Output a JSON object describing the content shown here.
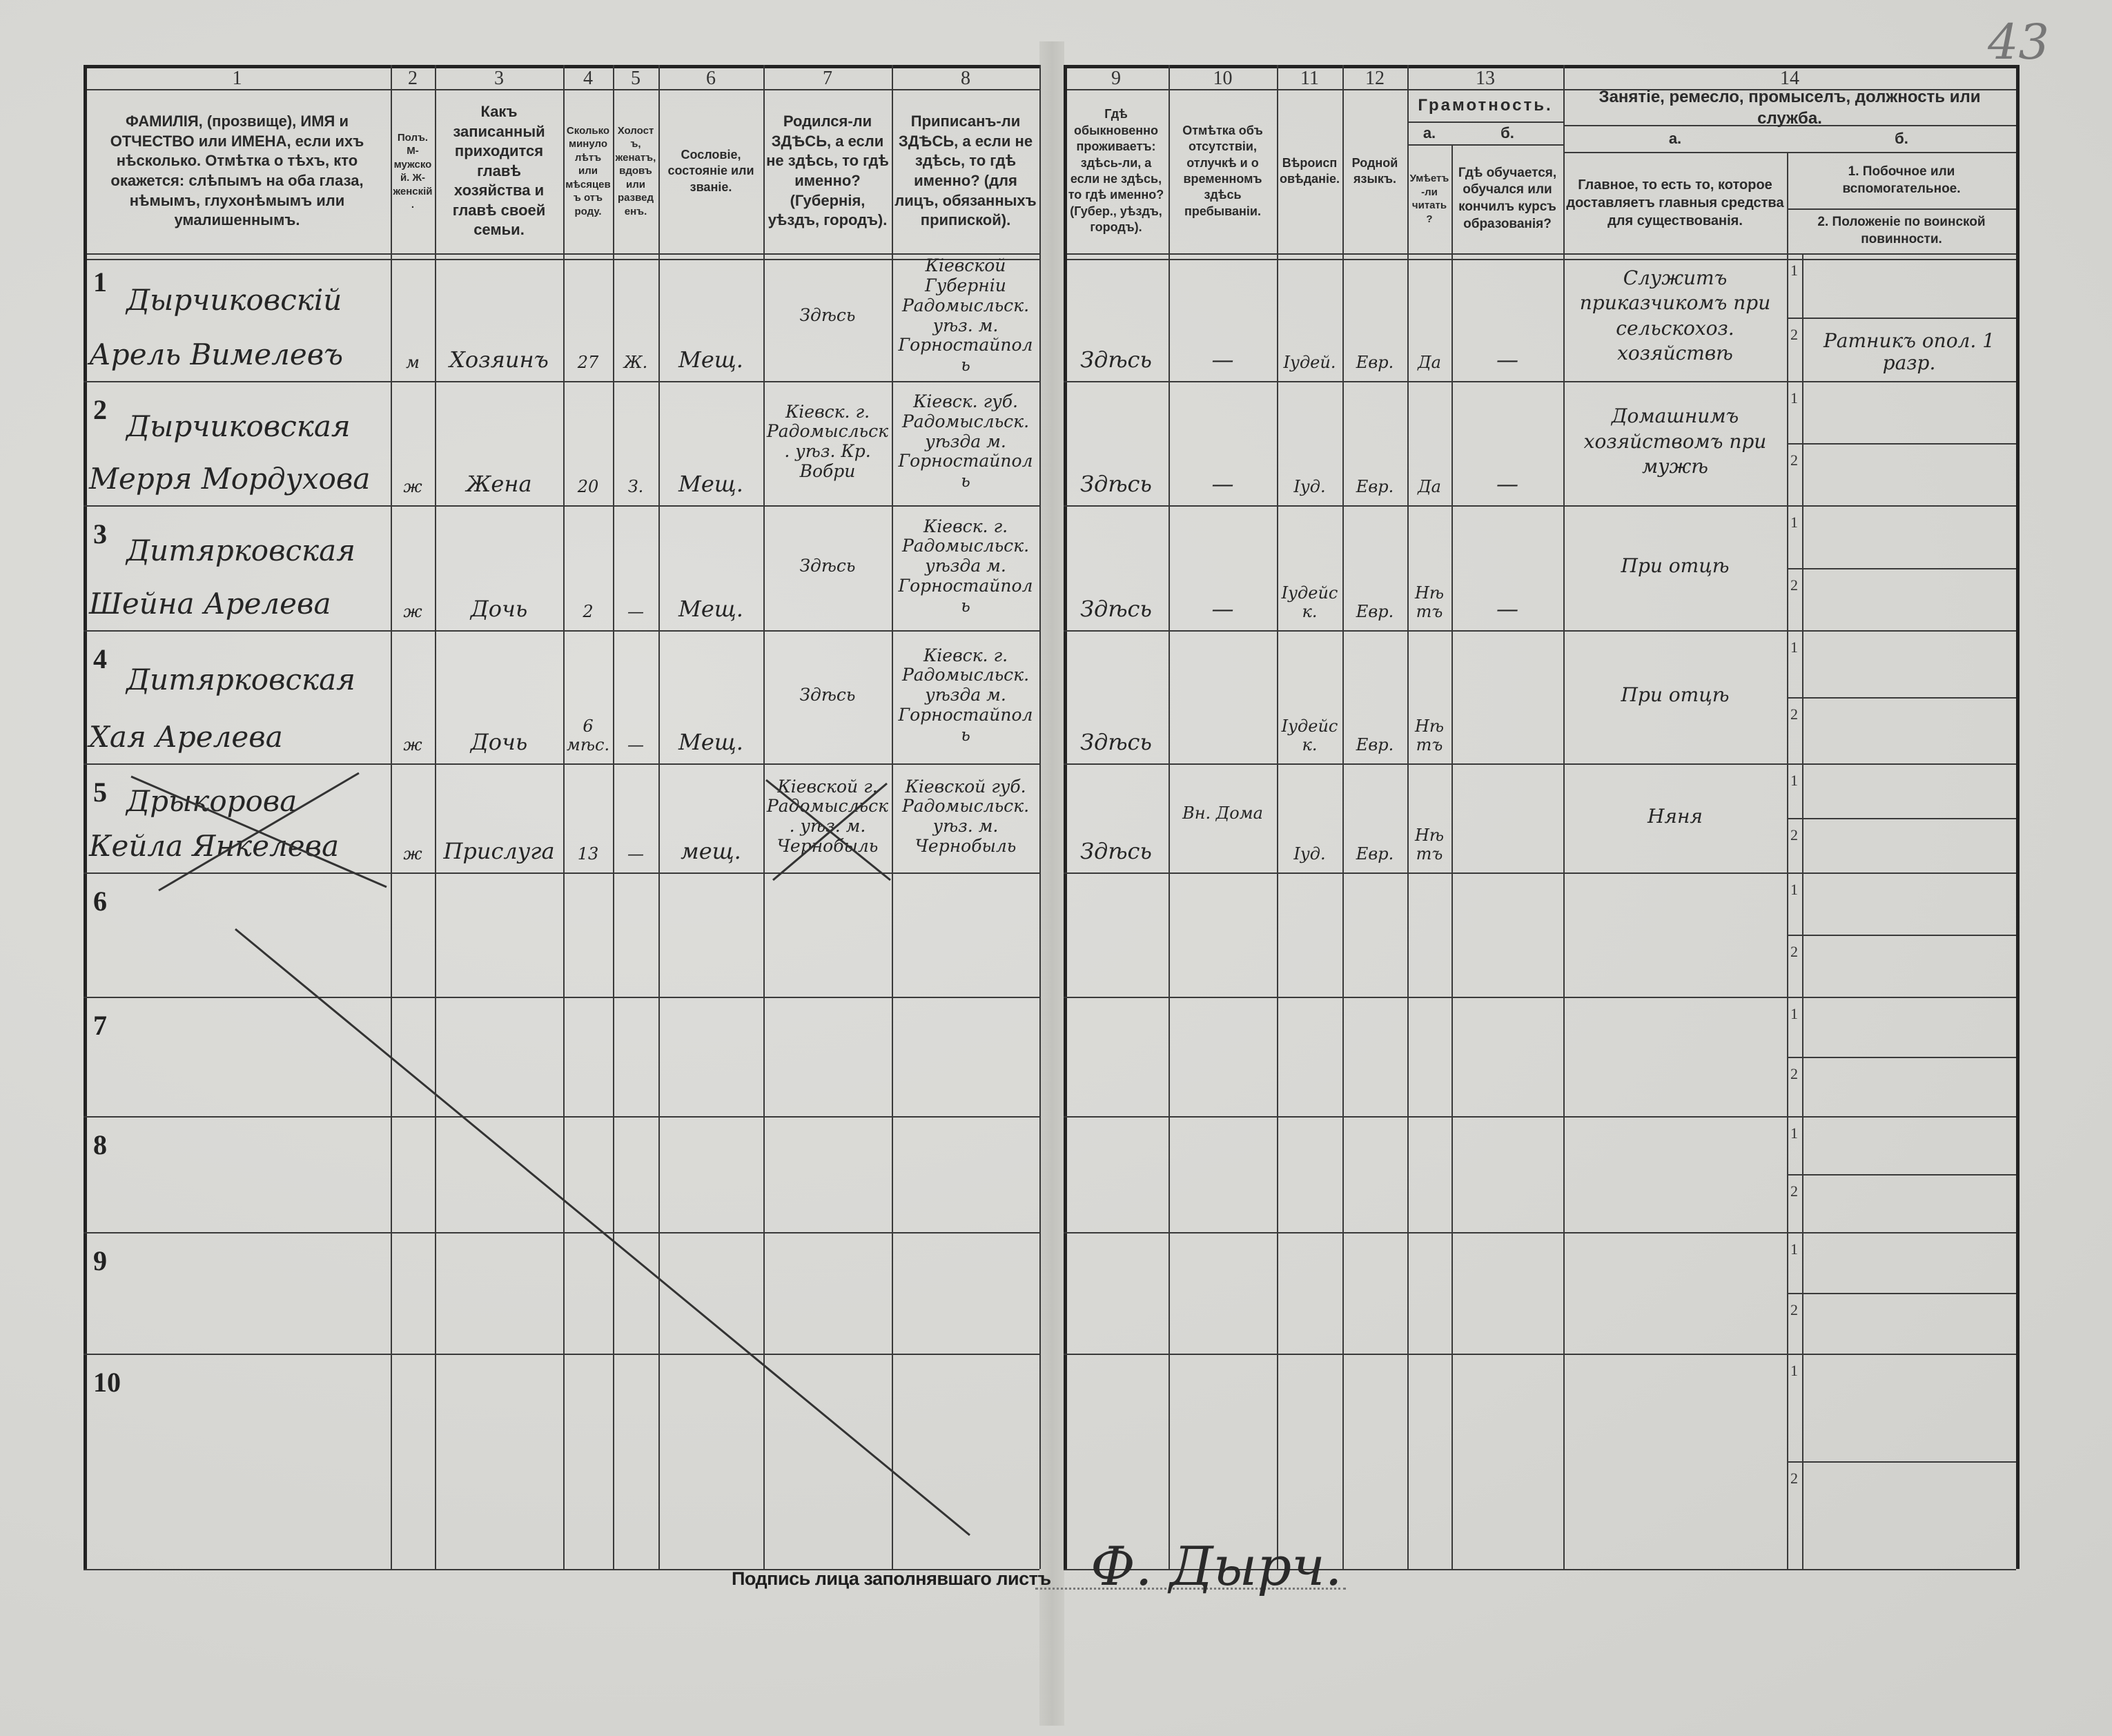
{
  "page_number": "43",
  "headers": {
    "c1": {
      "num": "1",
      "text": "ФАМИЛІЯ, (прозвище), ИМЯ и ОТЧЕСТВО или ИМЕНА, если ихъ нѣсколько. Отмѣтка о тѣхъ, кто окажется: слѣпымъ на оба глаза, нѣмымъ, глухонѣмымъ или умалишеннымъ."
    },
    "c2": {
      "num": "2",
      "text": "Полъ. М-мужской. Ж-женскій."
    },
    "c3": {
      "num": "3",
      "text": "Какъ записанный приходится главѣ хозяйства и главѣ своей семьи."
    },
    "c4": {
      "num": "4",
      "text": "Сколько минуло лѣтъ или мѣсяцевъ отъ роду."
    },
    "c5": {
      "num": "5",
      "text": "Холостъ, женатъ, вдовъ или разведенъ."
    },
    "c6": {
      "num": "6",
      "text": "Сословіе, состояніе или званіе."
    },
    "c7": {
      "num": "7",
      "text": "Родился-ли ЗДѢСЬ, а если не здѣсь, то гдѣ именно? (Губернія, уѣздъ, городъ)."
    },
    "c8": {
      "num": "8",
      "text": "Приписанъ-ли ЗДѢСЬ, а если не здѣсь, то гдѣ именно? (для лицъ, обязанныхъ припиской)."
    },
    "c9": {
      "num": "9",
      "text": "Гдѣ обыкновенно проживаетъ: здѣсь-ли, а если не здѣсь, то гдѣ именно? (Губер., уѣздъ, городъ)."
    },
    "c10": {
      "num": "10",
      "text": "Отмѣтка объ отсутствіи, отлучкѣ и о временномъ здѣсь пребываніи."
    },
    "c11": {
      "num": "11",
      "text": "Вѣроисповѣданіе."
    },
    "c12": {
      "num": "12",
      "text": "Родной языкъ."
    },
    "c13": {
      "num": "13",
      "text": "Грамотность.",
      "a_label": "а.",
      "a_text": "Умѣетъ-ли читать?",
      "b_label": "б.",
      "b_text": "Гдѣ обучается, обучался или кончилъ курсъ образованія?"
    },
    "c14": {
      "num": "14",
      "text": "Занятіе, ремесло, промыселъ, должность или служба.",
      "a_label": "а.",
      "a_text": "Главное, то есть то, которое доставляетъ главныя средства для существованія.",
      "b_label": "б.",
      "b_text1": "1. Побочное или вспомогательное.",
      "b_text2": "2. Положеніе по воинской повинности."
    }
  },
  "row_numbers": [
    "1",
    "2",
    "3",
    "4",
    "5",
    "6",
    "7",
    "8",
    "9",
    "10"
  ],
  "subrow_labels": [
    "1",
    "2"
  ],
  "rows": [
    {
      "surname": "Дырчиковскій",
      "name": "Арель Вимелевъ",
      "sex": "м",
      "relation": "Хозяинъ",
      "age": "27",
      "marital": "Ж.",
      "estate": "Мещ.",
      "birthplace": "Здѣсь",
      "registered": "Кіевской Губерніи Радомысльск. уѣз. м. Горностайполь",
      "residence": "Здѣсь",
      "absence": "—",
      "religion": "Іудей.",
      "language": "Евр.",
      "literate": "Да",
      "schooling": "—",
      "occupation_main": "Служитъ приказчикомъ при сельскохоз. хозяйствѣ",
      "occupation_secondary": "",
      "military": "Ратникъ опол. 1 разр.",
      "crossed": false
    },
    {
      "surname": "Дырчиковская",
      "name": "Мерря Мордухова",
      "sex": "ж",
      "relation": "Жена",
      "age": "20",
      "marital": "З.",
      "estate": "Мещ.",
      "birthplace": "Кіевск. г. Радомысльск. уѣз. Кр. Вобри",
      "registered": "Кіевск. губ. Радомысльск. уѣзда м. Горностайполь",
      "residence": "Здѣсь",
      "absence": "—",
      "religion": "Іуд.",
      "language": "Евр.",
      "literate": "Да",
      "schooling": "—",
      "occupation_main": "Домашнимъ хозяйствомъ при мужѣ",
      "occupation_secondary": "",
      "military": "",
      "crossed": false
    },
    {
      "surname": "Дитярковская",
      "name": "Шейна Арелева",
      "sex": "ж",
      "relation": "Дочь",
      "age": "2",
      "marital": "—",
      "estate": "Мещ.",
      "birthplace": "Здѣсь",
      "registered": "Кіевск. г. Радомысльск. уѣзда м. Горностайполь",
      "residence": "Здѣсь",
      "absence": "—",
      "religion": "Іудейск.",
      "language": "Евр.",
      "literate": "Нѣтъ",
      "schooling": "—",
      "occupation_main": "При отцѣ",
      "occupation_secondary": "",
      "military": "",
      "crossed": false
    },
    {
      "surname": "Дитярковская",
      "name": "Хая Арелева",
      "sex": "ж",
      "relation": "Дочь",
      "age": "6 мѣс.",
      "marital": "—",
      "estate": "Мещ.",
      "birthplace": "Здѣсь",
      "registered": "Кіевск. г. Радомысльск. уѣзда м. Горностайполь",
      "residence": "Здѣсь",
      "absence": "",
      "religion": "Іудейск.",
      "language": "Евр.",
      "literate": "Нѣтъ",
      "schooling": "",
      "occupation_main": "При отцѣ",
      "occupation_secondary": "",
      "military": "",
      "crossed": false
    },
    {
      "surname": "Дрыкорова",
      "name": "Кейла Янкелева",
      "sex": "ж",
      "relation": "Прислуга",
      "age": "13",
      "marital": "—",
      "estate": "мещ.",
      "birthplace": "Кіевской г. Радомысльск. уѣз. м. Чернобыль",
      "registered": "Кіевской губ. Радомысльск. уѣз. м. Чернобыль",
      "residence": "Здѣсь",
      "absence": "Вн. Дома",
      "religion": "Іуд.",
      "language": "Евр.",
      "literate": "Нѣтъ",
      "schooling": "",
      "occupation_main": "Няня",
      "occupation_secondary": "",
      "military": "",
      "crossed": true
    }
  ],
  "signature": {
    "label": "Подпись лица заполнявшаго листъ",
    "handwritten": "Ф. Дырч."
  }
}
